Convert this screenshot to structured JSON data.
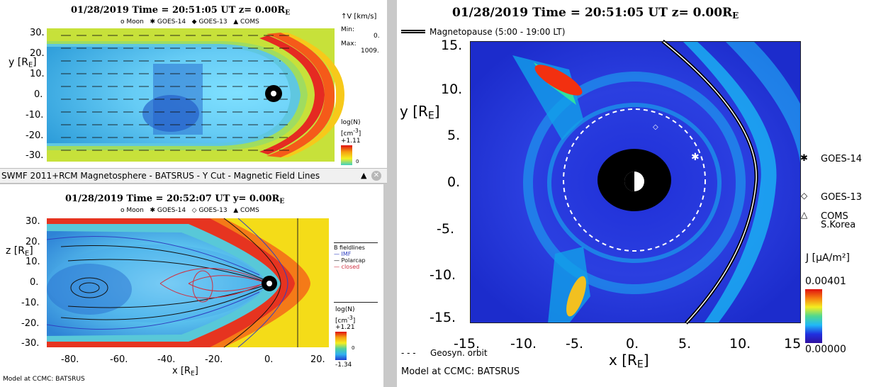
{
  "top_left": {
    "title_prefix": "01/28/2019 Time = 20:51:05 UT",
    "title_suffix": "z= 0.00R",
    "title_sub": "E",
    "legend_items": [
      "Moon",
      "GOES-14",
      "GOES-13",
      "COMS"
    ],
    "legend_markers": [
      "o",
      "✱",
      "◆",
      "▲"
    ],
    "vel_label": "V",
    "vel_unit_num": "km",
    "vel_unit_den": "s",
    "min_label": "Min:",
    "min_value": "0.",
    "max_label": "Max:",
    "max_value": "1009.",
    "ylabel": "y [R",
    "ylabel_sub": "E",
    "yticks": [
      "30.",
      "20.",
      "10.",
      "0.",
      "-10.",
      "-20.",
      "-30."
    ],
    "cbar_label": "log(N)",
    "cbar_unit": "[cm",
    "cbar_unit_sup": "-3",
    "cbar_max": "+1.11",
    "cbar_mid": "0"
  },
  "window": {
    "title": "SWMF 2011+RCM Magnetosphere - BATSRUS - Y Cut - Magnetic Field Lines",
    "icon_up": "▲",
    "icon_close": "✕"
  },
  "bottom_left": {
    "title_prefix": "01/28/2019 Time = 20:52:07 UT",
    "title_suffix": "y= 0.00R",
    "title_sub": "E",
    "legend_items": [
      "Moon",
      "GOES-14",
      "GOES-13",
      "COMS"
    ],
    "legend_markers": [
      "o",
      "✱",
      "◇",
      "▲"
    ],
    "ylabel": "z [R",
    "ylabel_sub": "E",
    "yticks": [
      "30.",
      "20.",
      "10.",
      "0.",
      "-10.",
      "-20.",
      "-30."
    ],
    "xticks": [
      "-80.",
      "-60.",
      "-40.",
      "-20.",
      "0.",
      "20."
    ],
    "xlabel": "x [R",
    "xlabel_sub": "E",
    "fl_title": "B fieldlines",
    "fl_items": [
      "IMF",
      "Polarcap",
      "closed"
    ],
    "fl_colors": [
      "#3040c0",
      "#111111",
      "#d03040"
    ],
    "cbar_label": "log(N)",
    "cbar_unit": "[cm",
    "cbar_unit_sup": "-3",
    "cbar_max": "+1.21",
    "cbar_mid": "0",
    "cbar_min": "-1.34",
    "footer": "Model at CCMC: BATSRUS"
  },
  "right": {
    "title_prefix": "01/28/2019 Time = 20:51:05 UT",
    "title_suffix": "z= 0.00R",
    "title_sub": "E",
    "magnetopause": "Magnetopause (5:00 - 19:00 LT)",
    "ylabel": "y [R",
    "ylabel_sub": "E",
    "yticks": [
      "15.",
      "10.",
      "5.",
      "0.",
      "-5.",
      "-10.",
      "-15."
    ],
    "xticks": [
      "-15.",
      "-10.",
      "-5.",
      "0.",
      "5.",
      "10.",
      "15"
    ],
    "xlabel": "x [R",
    "xlabel_sub": "E",
    "sat_markers": [
      "✱",
      "◇",
      "△"
    ],
    "sat_labels": [
      "GOES-14",
      "GOES-13",
      "COMS"
    ],
    "coms_sub": "S.Korea",
    "j_label": "J",
    "j_unit_num": "μA",
    "j_unit_den": "m²",
    "cbar_max": "0.00401",
    "cbar_min": "0.00000",
    "geosyn": "Geosyn. orbit",
    "geosyn_dash": "- - -",
    "footer": "Model at CCMC: BATSRUS"
  }
}
